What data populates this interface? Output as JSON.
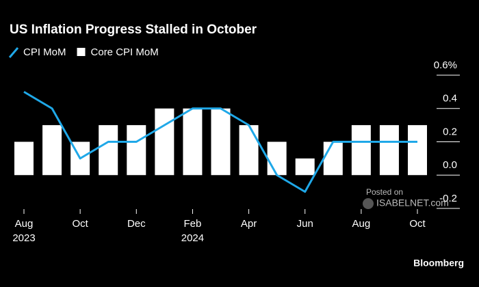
{
  "chart_data": {
    "type": "bar_line",
    "title": "US Inflation Progress Stalled in October",
    "categories": [
      "Aug",
      null,
      "Oct",
      null,
      "Dec",
      null,
      "Feb",
      null,
      "Apr",
      null,
      "Jun",
      null,
      "Aug",
      null,
      "Oct"
    ],
    "category_years": [
      "2023",
      null,
      null,
      null,
      null,
      null,
      "2024",
      null,
      null,
      null,
      null,
      null,
      null,
      null,
      null
    ],
    "series": [
      {
        "name": "CPI MoM",
        "type": "line",
        "color": "#1fa8e8",
        "values": [
          0.5,
          0.4,
          0.1,
          0.2,
          0.2,
          0.3,
          0.4,
          0.4,
          0.3,
          0.0,
          -0.1,
          0.2,
          0.2,
          0.2,
          0.2
        ]
      },
      {
        "name": "Core CPI MoM",
        "type": "bar",
        "color": "#ffffff",
        "values": [
          0.2,
          0.3,
          0.2,
          0.3,
          0.3,
          0.4,
          0.4,
          0.4,
          0.3,
          0.2,
          0.1,
          0.2,
          0.3,
          0.3,
          0.3
        ]
      }
    ],
    "ylim": [
      -0.2,
      0.6
    ],
    "yticks": [
      {
        "value": 0.6,
        "label": "0.6%"
      },
      0.4,
      0.2,
      {
        "value": 0.0,
        "label": "0.0"
      },
      -0.2
    ],
    "legend": "top-left",
    "watermark": [
      "Posted on",
      "ISABELNET.com"
    ],
    "source": "Bloomberg"
  }
}
